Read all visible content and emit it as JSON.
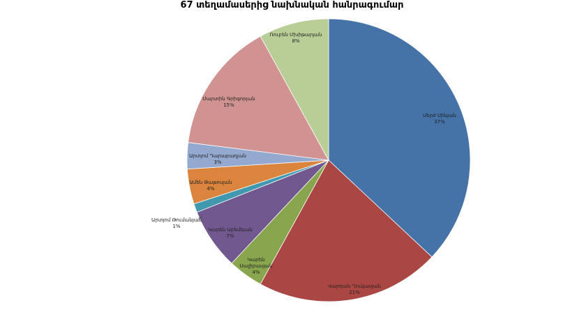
{
  "chart_data": {
    "type": "pie",
    "title": "67 տեղամասերից նախնական հանրագումար",
    "slices": [
      {
        "label": "Սերժ Սինյան",
        "percent_label": "37%",
        "value": 37,
        "color": "#4572A7"
      },
      {
        "label": "Վարդան Ղուկասյան",
        "percent_label": "21%",
        "value": 21,
        "color": "#AA4643"
      },
      {
        "label": "Կարեն Սալիբասյան",
        "percent_label": "4%",
        "value": 4,
        "color": "#89A54E"
      },
      {
        "label": "Կարեն Աբեմեյան",
        "percent_label": "7%",
        "value": 7,
        "color": "#71588F"
      },
      {
        "label": "Արտյոմ Թումանյան",
        "percent_label": "1%",
        "value": 1,
        "color": "#4198AF"
      },
      {
        "label": "Ամեն Թաթոսյան",
        "percent_label": "4%",
        "value": 4,
        "color": "#DB843D"
      },
      {
        "label": "Արտյոմ Դարաբաղյան",
        "percent_label": "3%",
        "value": 3,
        "color": "#93A9CF"
      },
      {
        "label": "Մարտին Գրիգորյան",
        "percent_label": "15%",
        "value": 15,
        "color": "#D19392"
      },
      {
        "label": "Ռուբեն Մխիթարյան",
        "percent_label": "8%",
        "value": 8,
        "color": "#B9CD96"
      }
    ]
  }
}
